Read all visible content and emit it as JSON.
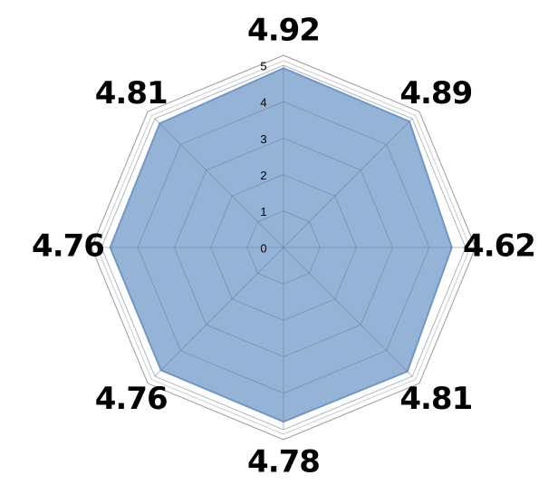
{
  "chart_data": {
    "type": "radar",
    "categories": [
      null,
      null,
      null,
      null,
      null,
      null,
      null,
      null
    ],
    "values": [
      4.92,
      4.89,
      4.62,
      4.81,
      4.78,
      4.76,
      4.76,
      4.81
    ],
    "color": "#95b3d7",
    "ylim": [
      0,
      5
    ],
    "yticks": [
      0,
      1,
      2,
      3,
      4,
      5
    ],
    "grid": true
  }
}
